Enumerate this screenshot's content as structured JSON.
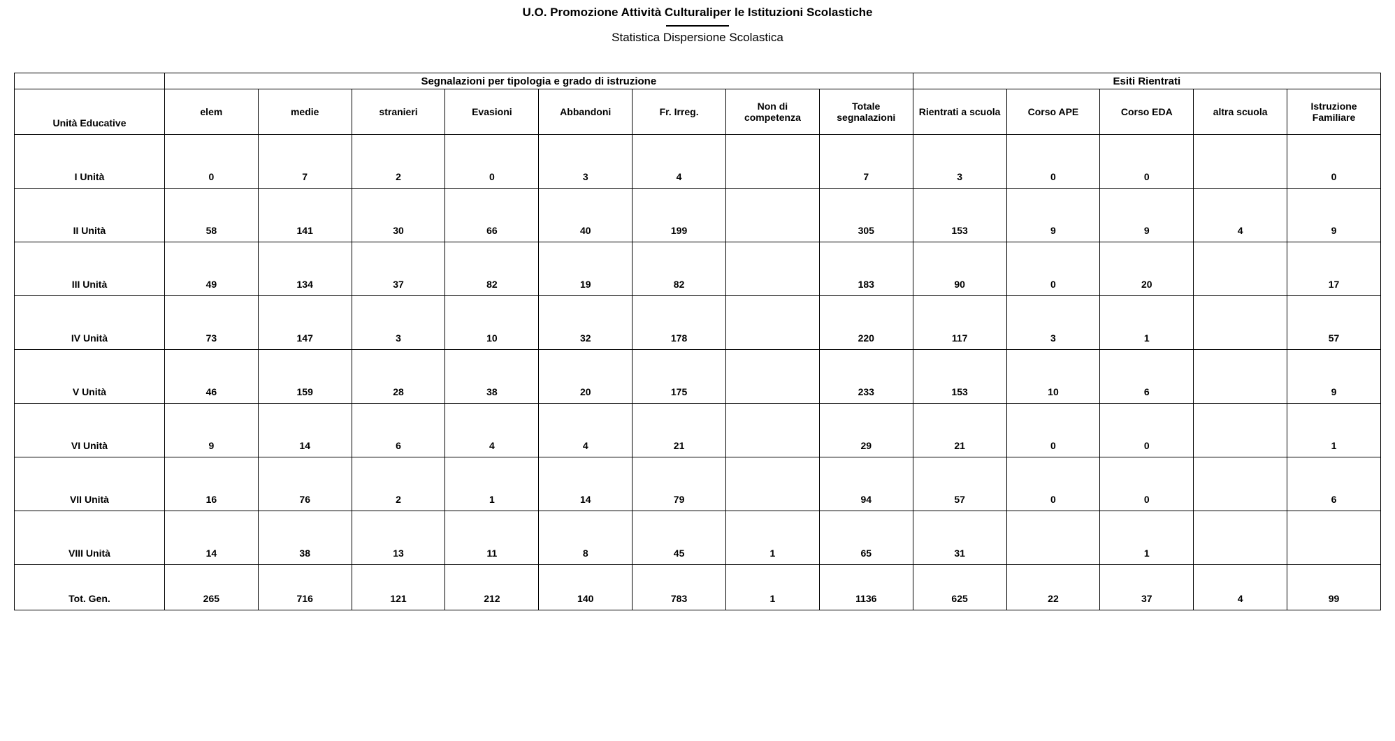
{
  "header": {
    "title": "U.O. Promozione Attività Culturaliper le Istituzioni Scolastiche",
    "subtitle": "Statistica Dispersione Scolastica"
  },
  "table": {
    "group_headers": {
      "segnalazioni": "Segnalazioni per tipologia e grado di istruzione",
      "esiti": "Esiti Rientrati"
    },
    "columns": {
      "unita": "Unità Educative",
      "elem": "elem",
      "medie": "medie",
      "stranieri": "stranieri",
      "evasioni": "Evasioni",
      "abbandoni": "Abbandoni",
      "fr_irreg": "Fr. Irreg.",
      "non_comp": "Non di competenza",
      "totale": "Totale segnalazioni",
      "rientrati": "Rientrati a scuola",
      "corso_ape": "Corso APE",
      "corso_eda": "Corso EDA",
      "altra": "altra scuola",
      "istr_fam": "Istruzione Familiare"
    },
    "rows": [
      {
        "label": "I Unità",
        "elem": "0",
        "medie": "7",
        "stranieri": "2",
        "evasioni": "0",
        "abbandoni": "3",
        "fr_irreg": "4",
        "non_comp": "",
        "totale": "7",
        "rientrati": "3",
        "corso_ape": "0",
        "corso_eda": "0",
        "altra": "",
        "istr_fam": "0"
      },
      {
        "label": "II Unità",
        "elem": "58",
        "medie": "141",
        "stranieri": "30",
        "evasioni": "66",
        "abbandoni": "40",
        "fr_irreg": "199",
        "non_comp": "",
        "totale": "305",
        "rientrati": "153",
        "corso_ape": "9",
        "corso_eda": "9",
        "altra": "4",
        "istr_fam": "9"
      },
      {
        "label": "III Unità",
        "elem": "49",
        "medie": "134",
        "stranieri": "37",
        "evasioni": "82",
        "abbandoni": "19",
        "fr_irreg": "82",
        "non_comp": "",
        "totale": "183",
        "rientrati": "90",
        "corso_ape": "0",
        "corso_eda": "20",
        "altra": "",
        "istr_fam": "17"
      },
      {
        "label": "IV Unità",
        "elem": "73",
        "medie": "147",
        "stranieri": "3",
        "evasioni": "10",
        "abbandoni": "32",
        "fr_irreg": "178",
        "non_comp": "",
        "totale": "220",
        "rientrati": "117",
        "corso_ape": "3",
        "corso_eda": "1",
        "altra": "",
        "istr_fam": "57"
      },
      {
        "label": "V Unità",
        "elem": "46",
        "medie": "159",
        "stranieri": "28",
        "evasioni": "38",
        "abbandoni": "20",
        "fr_irreg": "175",
        "non_comp": "",
        "totale": "233",
        "rientrati": "153",
        "corso_ape": "10",
        "corso_eda": "6",
        "altra": "",
        "istr_fam": "9"
      },
      {
        "label": "VI Unità",
        "elem": "9",
        "medie": "14",
        "stranieri": "6",
        "evasioni": "4",
        "abbandoni": "4",
        "fr_irreg": "21",
        "non_comp": "",
        "totale": "29",
        "rientrati": "21",
        "corso_ape": "0",
        "corso_eda": "0",
        "altra": "",
        "istr_fam": "1"
      },
      {
        "label": "VII Unità",
        "elem": "16",
        "medie": "76",
        "stranieri": "2",
        "evasioni": "1",
        "abbandoni": "14",
        "fr_irreg": "79",
        "non_comp": "",
        "totale": "94",
        "rientrati": "57",
        "corso_ape": "0",
        "corso_eda": "0",
        "altra": "",
        "istr_fam": "6"
      },
      {
        "label": "VIII Unità",
        "elem": "14",
        "medie": "38",
        "stranieri": "13",
        "evasioni": "11",
        "abbandoni": "8",
        "fr_irreg": "45",
        "non_comp": "1",
        "totale": "65",
        "rientrati": "31",
        "corso_ape": "",
        "corso_eda": "1",
        "altra": "",
        "istr_fam": ""
      }
    ],
    "total": {
      "label": "Tot. Gen.",
      "elem": "265",
      "medie": "716",
      "stranieri": "121",
      "evasioni": "212",
      "abbandoni": "140",
      "fr_irreg": "783",
      "non_comp": "1",
      "totale": "1136",
      "rientrati": "625",
      "corso_ape": "22",
      "corso_eda": "37",
      "altra": "4",
      "istr_fam": "99"
    }
  }
}
